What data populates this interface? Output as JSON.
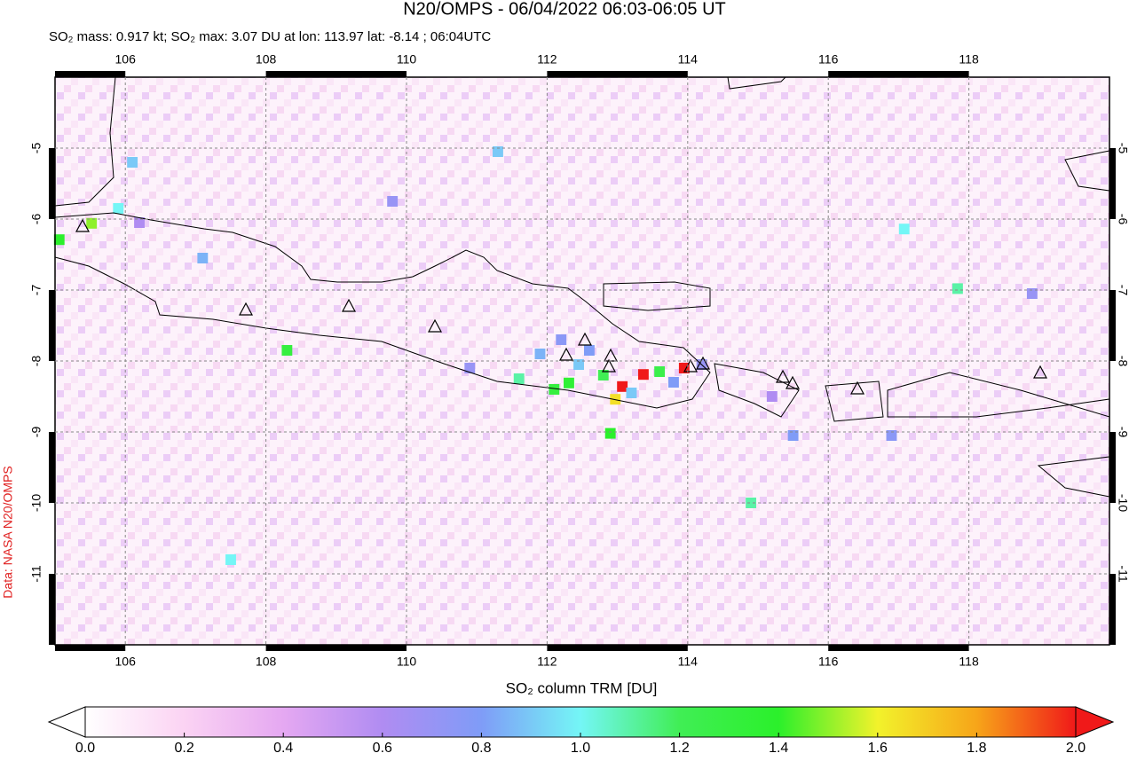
{
  "chart_data": {
    "type": "map",
    "title": "N20/OMPS - 06/04/2022 06:03-06:05 UT",
    "subtitle": "SO₂ mass: 0.917 kt; SO₂ max: 3.07 DU at lon: 113.97 lat: -8.14 ; 06:04UTC",
    "credit": "Data: NASA N20/OMPS",
    "colorbar_label": "SO₂ column TRM [DU]",
    "xlim": [
      105,
      120
    ],
    "ylim": [
      -12,
      -4
    ],
    "xticks": [
      106,
      108,
      110,
      112,
      114,
      116,
      118
    ],
    "yticks": [
      -5,
      -6,
      -7,
      -8,
      -9,
      -10,
      -11
    ],
    "grid": true,
    "colorbar": {
      "lim": [
        0,
        2
      ],
      "ticks": [
        {
          "value": 0,
          "label": "0.0"
        },
        {
          "value": 0.2,
          "label": "0.2"
        },
        {
          "value": 0.4,
          "label": "0.4"
        },
        {
          "value": 0.6,
          "label": "0.6"
        },
        {
          "value": 0.8,
          "label": "0.8"
        },
        {
          "value": 1,
          "label": "1.0"
        },
        {
          "value": 1.2,
          "label": "1.2"
        },
        {
          "value": 1.4,
          "label": "1.4"
        },
        {
          "value": 1.6,
          "label": "1.6"
        },
        {
          "value": 1.8,
          "label": "1.8"
        },
        {
          "value": 2,
          "label": "2.0"
        }
      ],
      "colors": [
        "#ffffff",
        "#fbd3f3",
        "#e5a8f2",
        "#b08cf2",
        "#7f9cf7",
        "#74f6f6",
        "#40ee55",
        "#2bf02b",
        "#f2f22b",
        "#f7a519",
        "#f01919"
      ]
    },
    "pixels": {
      "lon": [
        113.07,
        113.37,
        113.95,
        112.31,
        112.97,
        105.52,
        105.06,
        117.08,
        117.84,
        112.6,
        112.45,
        112.1,
        111.9,
        112.8,
        113.2,
        113.6,
        112.2,
        111.6,
        110.9,
        108.3,
        107.1,
        106.2,
        105.9,
        106.1,
        113.8,
        115.2,
        118.9,
        112.9,
        114.2,
        115.5,
        111.3,
        114.9,
        109.8,
        116.9,
        107.5
      ],
      "lat": [
        -8.36,
        -8.19,
        -8.1,
        -8.31,
        -8.54,
        -6.06,
        -6.29,
        -6.14,
        -6.98,
        -7.85,
        -8.05,
        -8.4,
        -7.9,
        -8.2,
        -8.45,
        -8.15,
        -7.7,
        -8.25,
        -8.1,
        -7.85,
        -6.55,
        -6.05,
        -5.85,
        -5.2,
        -8.3,
        -8.5,
        -7.05,
        -9.02,
        -8.05,
        -9.05,
        -5.05,
        -10.0,
        -5.75,
        -9.05,
        -10.8
      ],
      "values": [
        2.0,
        2.0,
        2.0,
        1.35,
        1.65,
        1.5,
        1.4,
        1.0,
        1.1,
        0.8,
        0.9,
        1.3,
        0.85,
        1.2,
        0.9,
        1.25,
        0.75,
        1.1,
        0.7,
        1.3,
        0.85,
        0.6,
        1.0,
        0.9,
        0.8,
        0.6,
        0.7,
        1.4,
        0.7,
        0.8,
        0.9,
        1.1,
        0.7,
        0.75,
        1.0
      ]
    }
  }
}
